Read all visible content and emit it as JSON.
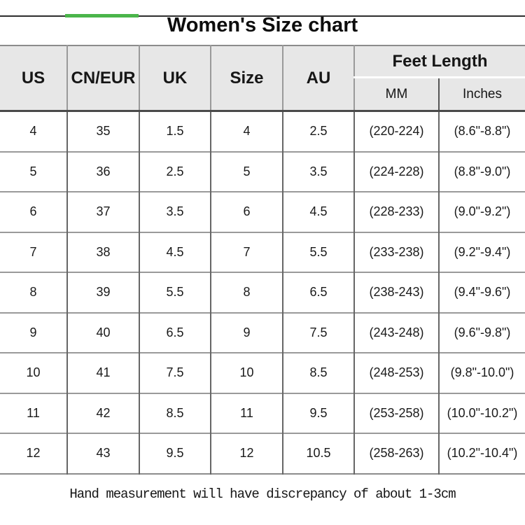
{
  "page": {
    "title": "Women's Size chart",
    "note": "Hand measurement will have discrepancy of about 1-3cm"
  },
  "colors": {
    "accent_green": "#4ab54a",
    "topbar_dark": "#2e2e2e",
    "header_bg": "#e7e7e7",
    "grid_horizontal": "#9a9a9a",
    "grid_vertical": "#666666",
    "header_bottom_line": "#4a4a4a",
    "outer_border": "#8c8c8c"
  },
  "table": {
    "headers": {
      "us": "US",
      "cn_eur": "CN/EUR",
      "uk": "UK",
      "size": "Size",
      "au": "AU",
      "feet_length": "Feet Length",
      "mm": "MM",
      "inches": "Inches"
    }
  },
  "chart_data": {
    "type": "table",
    "title": "Women's Size chart",
    "columns": [
      "US",
      "CN/EUR",
      "UK",
      "Size",
      "AU",
      "Feet Length MM",
      "Feet Length Inches"
    ],
    "rows": [
      [
        "4",
        "35",
        "1.5",
        "4",
        "2.5",
        "(220-224)",
        "(8.6\"-8.8\")"
      ],
      [
        "5",
        "36",
        "2.5",
        "5",
        "3.5",
        "(224-228)",
        "(8.8\"-9.0\")"
      ],
      [
        "6",
        "37",
        "3.5",
        "6",
        "4.5",
        "(228-233)",
        "(9.0\"-9.2\")"
      ],
      [
        "7",
        "38",
        "4.5",
        "7",
        "5.5",
        "(233-238)",
        "(9.2\"-9.4\")"
      ],
      [
        "8",
        "39",
        "5.5",
        "8",
        "6.5",
        "(238-243)",
        "(9.4\"-9.6\")"
      ],
      [
        "9",
        "40",
        "6.5",
        "9",
        "7.5",
        "(243-248)",
        "(9.6\"-9.8\")"
      ],
      [
        "10",
        "41",
        "7.5",
        "10",
        "8.5",
        "(248-253)",
        "(9.8\"-10.0\")"
      ],
      [
        "11",
        "42",
        "8.5",
        "11",
        "9.5",
        "(253-258)",
        "(10.0\"-10.2\")"
      ],
      [
        "12",
        "43",
        "9.5",
        "12",
        "10.5",
        "(258-263)",
        "(10.2\"-10.4\")"
      ]
    ],
    "footnote": "Hand measurement will have discrepancy of about 1-3cm"
  }
}
